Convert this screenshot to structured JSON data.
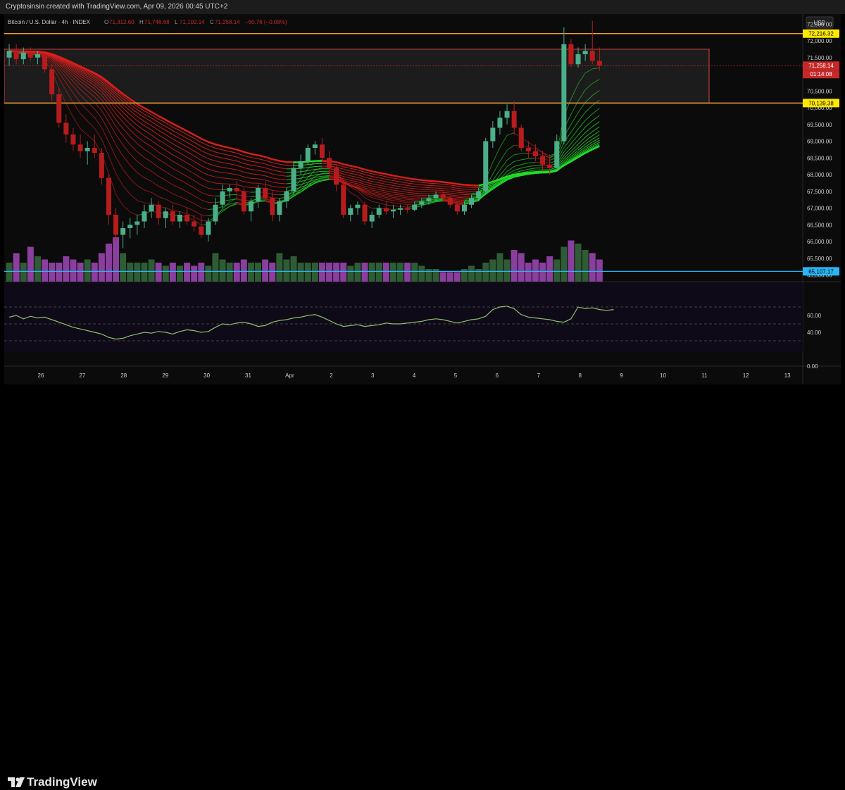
{
  "header": {
    "caption": "Cryptosinsin created with TradingView.com, Apr 09, 2026 00:45 UTC+2"
  },
  "legend": {
    "symbol": "Bitcoin / U.S. Dollar · 4h · INDEX",
    "o_label": "O",
    "o_value": "71,312.60",
    "h_label": "H",
    "h_value": "71,746.68",
    "l_label": "L",
    "l_value": "71,102.14",
    "c_label": "C",
    "c_value": "71,258.14",
    "change": "−60.76 (−0.08%)"
  },
  "price_axis": {
    "currency": "USD",
    "ticks": [
      "72,500.00",
      "72,000.00",
      "71,500.00",
      "71,000.00",
      "70,500.00",
      "70,000.00",
      "69,500.00",
      "69,000.00",
      "68,500.00",
      "68,000.00",
      "67,500.00",
      "67,000.00",
      "66,500.00",
      "66,000.00",
      "65,500.00",
      "65,000.00"
    ],
    "tags": {
      "resistance": "72,216.32",
      "last_price": "71,258.14",
      "countdown": "01:14:08",
      "support": "70,139.38",
      "low_line": "65,107.17"
    }
  },
  "rsi_axis": {
    "ticks": [
      "60.00",
      "40.00",
      "0.00"
    ]
  },
  "time_axis": {
    "labels": [
      "26",
      "27",
      "28",
      "29",
      "30",
      "31",
      "Apr",
      "2",
      "3",
      "4",
      "5",
      "6",
      "7",
      "8",
      "9",
      "10",
      "11",
      "12",
      "13"
    ]
  },
  "branding": {
    "name": "TradingView"
  },
  "colors": {
    "up": "#4caf8a",
    "down": "#b71c1c",
    "ribbon_red": "#e0201c",
    "ribbon_green": "#22e02a",
    "volume_up": "#2e5c34",
    "volume_down": "#8a3e9e",
    "rsi": "#8fbf6f",
    "level_orange": "#f0a030",
    "level_yellow_tag": "#ffe900",
    "level_blue": "#29b6f6"
  },
  "chart_data": {
    "type": "candlestick",
    "interval": "4h",
    "ylim": [
      64800,
      72800
    ],
    "candles": [
      [
        71500,
        71900,
        71250,
        71700
      ],
      [
        71700,
        71900,
        71300,
        71450
      ],
      [
        71450,
        71800,
        71300,
        71650
      ],
      [
        71650,
        71800,
        71400,
        71500
      ],
      [
        71500,
        71700,
        71300,
        71600
      ],
      [
        71600,
        71700,
        71050,
        71150
      ],
      [
        71150,
        71300,
        70200,
        70400
      ],
      [
        70400,
        70600,
        69400,
        69550
      ],
      [
        69550,
        69800,
        68950,
        69200
      ],
      [
        69200,
        69400,
        68700,
        68900
      ],
      [
        68900,
        69200,
        68500,
        68700
      ],
      [
        68700,
        69000,
        68300,
        68800
      ],
      [
        68800,
        69200,
        68500,
        68650
      ],
      [
        68650,
        68800,
        67700,
        67900
      ],
      [
        67900,
        68000,
        66500,
        66800
      ],
      [
        66800,
        67000,
        66000,
        66200
      ],
      [
        66200,
        66600,
        65800,
        66400
      ],
      [
        66400,
        66700,
        66100,
        66500
      ],
      [
        66500,
        66800,
        66200,
        66600
      ],
      [
        66600,
        67100,
        66400,
        66900
      ],
      [
        66900,
        67300,
        66700,
        67100
      ],
      [
        67100,
        67200,
        66500,
        66700
      ],
      [
        66700,
        67000,
        66400,
        66900
      ],
      [
        66900,
        67100,
        66500,
        66600
      ],
      [
        66600,
        66900,
        66400,
        66800
      ],
      [
        66800,
        67000,
        66500,
        66600
      ],
      [
        66600,
        66800,
        66300,
        66450
      ],
      [
        66450,
        66800,
        66100,
        66200
      ],
      [
        66200,
        66700,
        66000,
        66600
      ],
      [
        66600,
        67300,
        66500,
        67100
      ],
      [
        67100,
        67700,
        67000,
        67500
      ],
      [
        67500,
        67700,
        67300,
        67600
      ],
      [
        67600,
        67800,
        67300,
        67500
      ],
      [
        67500,
        67600,
        66800,
        66900
      ],
      [
        66900,
        67300,
        66600,
        67200
      ],
      [
        67200,
        67700,
        67000,
        67600
      ],
      [
        67600,
        67800,
        67200,
        67300
      ],
      [
        67300,
        67500,
        66600,
        66800
      ],
      [
        66800,
        67300,
        66600,
        67200
      ],
      [
        67200,
        67600,
        67000,
        67500
      ],
      [
        67500,
        68400,
        67400,
        68200
      ],
      [
        68200,
        68600,
        68000,
        68400
      ],
      [
        68400,
        68900,
        68300,
        68800
      ],
      [
        68800,
        69000,
        68600,
        68900
      ],
      [
        68900,
        69100,
        68400,
        68500
      ],
      [
        68500,
        68700,
        68000,
        68200
      ],
      [
        68200,
        68300,
        67500,
        67700
      ],
      [
        67700,
        67800,
        66700,
        66800
      ],
      [
        66800,
        67100,
        66600,
        67000
      ],
      [
        67000,
        67200,
        66800,
        67100
      ],
      [
        67100,
        67200,
        66500,
        66600
      ],
      [
        66600,
        66900,
        66400,
        66800
      ],
      [
        66800,
        67100,
        66700,
        67000
      ],
      [
        67000,
        67200,
        66800,
        66900
      ],
      [
        66900,
        67100,
        66700,
        66950
      ],
      [
        66950,
        67100,
        66800,
        67000
      ],
      [
        67000,
        67100,
        66850,
        66950
      ],
      [
        66950,
        67200,
        66900,
        67100
      ],
      [
        67100,
        67300,
        67000,
        67200
      ],
      [
        67200,
        67400,
        67100,
        67300
      ],
      [
        67300,
        67500,
        67200,
        67400
      ],
      [
        67400,
        67500,
        67200,
        67300
      ],
      [
        67300,
        67400,
        67000,
        67100
      ],
      [
        67100,
        67200,
        66800,
        66900
      ],
      [
        66900,
        67200,
        66800,
        67100
      ],
      [
        67100,
        67400,
        67000,
        67300
      ],
      [
        67300,
        67600,
        67200,
        67500
      ],
      [
        67500,
        69100,
        67400,
        69000
      ],
      [
        69000,
        69600,
        68800,
        69400
      ],
      [
        69400,
        69900,
        69200,
        69700
      ],
      [
        69700,
        70100,
        69500,
        69900
      ],
      [
        69900,
        70200,
        69200,
        69400
      ],
      [
        69400,
        69500,
        68700,
        68800
      ],
      [
        68800,
        69000,
        68500,
        68700
      ],
      [
        68700,
        68900,
        68400,
        68550
      ],
      [
        68550,
        68700,
        68100,
        68300
      ],
      [
        68300,
        68600,
        68000,
        68200
      ],
      [
        68200,
        69200,
        68100,
        69000
      ],
      [
        69000,
        72400,
        68900,
        71900
      ],
      [
        71900,
        72050,
        71200,
        71300
      ],
      [
        71300,
        71800,
        71200,
        71600
      ],
      [
        71600,
        71900,
        71400,
        71700
      ],
      [
        71700,
        72600,
        71300,
        71400
      ],
      [
        71400,
        71800,
        71100,
        71258
      ]
    ],
    "volumes": [
      0.3,
      0.45,
      0.3,
      0.55,
      0.4,
      0.35,
      0.3,
      0.3,
      0.4,
      0.35,
      0.3,
      0.35,
      0.3,
      0.45,
      0.6,
      0.7,
      0.45,
      0.3,
      0.3,
      0.3,
      0.35,
      0.3,
      0.25,
      0.3,
      0.25,
      0.3,
      0.25,
      0.3,
      0.25,
      0.45,
      0.35,
      0.3,
      0.3,
      0.35,
      0.3,
      0.3,
      0.35,
      0.3,
      0.45,
      0.35,
      0.4,
      0.3,
      0.3,
      0.3,
      0.3,
      0.3,
      0.3,
      0.3,
      0.25,
      0.3,
      0.3,
      0.3,
      0.3,
      0.3,
      0.3,
      0.3,
      0.3,
      0.3,
      0.25,
      0.2,
      0.2,
      0.15,
      0.15,
      0.15,
      0.2,
      0.25,
      0.2,
      0.3,
      0.35,
      0.45,
      0.35,
      0.5,
      0.45,
      0.3,
      0.35,
      0.3,
      0.4,
      0.35,
      0.55,
      0.65,
      0.6,
      0.5,
      0.45,
      0.35,
      0.3,
      0.3
    ],
    "rsi": [
      58,
      60,
      56,
      59,
      57,
      58,
      55,
      52,
      49,
      46,
      44,
      42,
      40,
      38,
      34,
      32,
      33,
      36,
      38,
      40,
      39,
      41,
      40,
      38,
      41,
      43,
      42,
      40,
      41,
      46,
      50,
      49,
      51,
      52,
      50,
      47,
      48,
      52,
      54,
      55,
      57,
      58,
      60,
      61,
      58,
      54,
      50,
      47,
      48,
      49,
      47,
      48,
      49,
      51,
      50,
      50,
      51,
      52,
      53,
      55,
      56,
      55,
      53,
      51,
      53,
      55,
      56,
      59,
      67,
      70,
      71,
      68,
      61,
      58,
      57,
      56,
      55,
      53,
      52,
      56,
      70,
      68,
      69,
      67,
      66,
      67
    ],
    "levels": {
      "resistance": 72216.32,
      "support": 70139.38,
      "low": 65107.17,
      "last": 71258.14
    },
    "time_labels": [
      "26",
      "27",
      "28",
      "29",
      "30",
      "31",
      "Apr",
      "2",
      "3",
      "4",
      "5",
      "6",
      "7",
      "8",
      "9",
      "10",
      "11",
      "12",
      "13"
    ]
  }
}
